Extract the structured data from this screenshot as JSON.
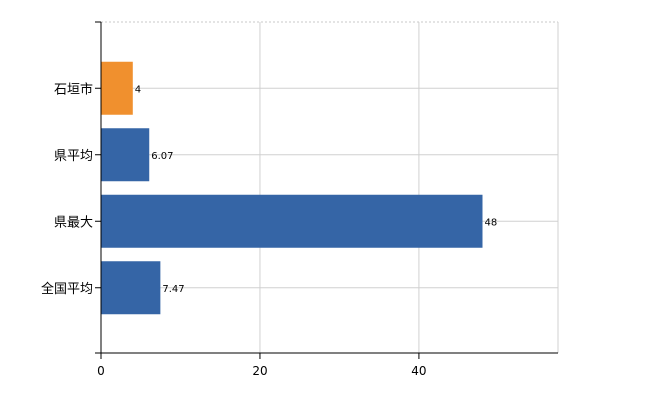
{
  "chart_data": {
    "type": "bar",
    "orientation": "horizontal",
    "categories": [
      "石垣市",
      "県平均",
      "県最大",
      "全国平均"
    ],
    "values": [
      4,
      6.07,
      48,
      7.47
    ],
    "value_labels": [
      "4",
      "6.07",
      "48",
      "7.47"
    ],
    "highlight_index": 0,
    "colors": {
      "highlight": "#f0902e",
      "default": "#3565a6"
    },
    "xlim": [
      0,
      57.5
    ],
    "xticks": [
      0,
      20,
      40
    ],
    "xtick_labels": [
      "0",
      "20",
      "40"
    ],
    "grid": "vertical",
    "title": "",
    "xlabel": "",
    "ylabel": ""
  }
}
